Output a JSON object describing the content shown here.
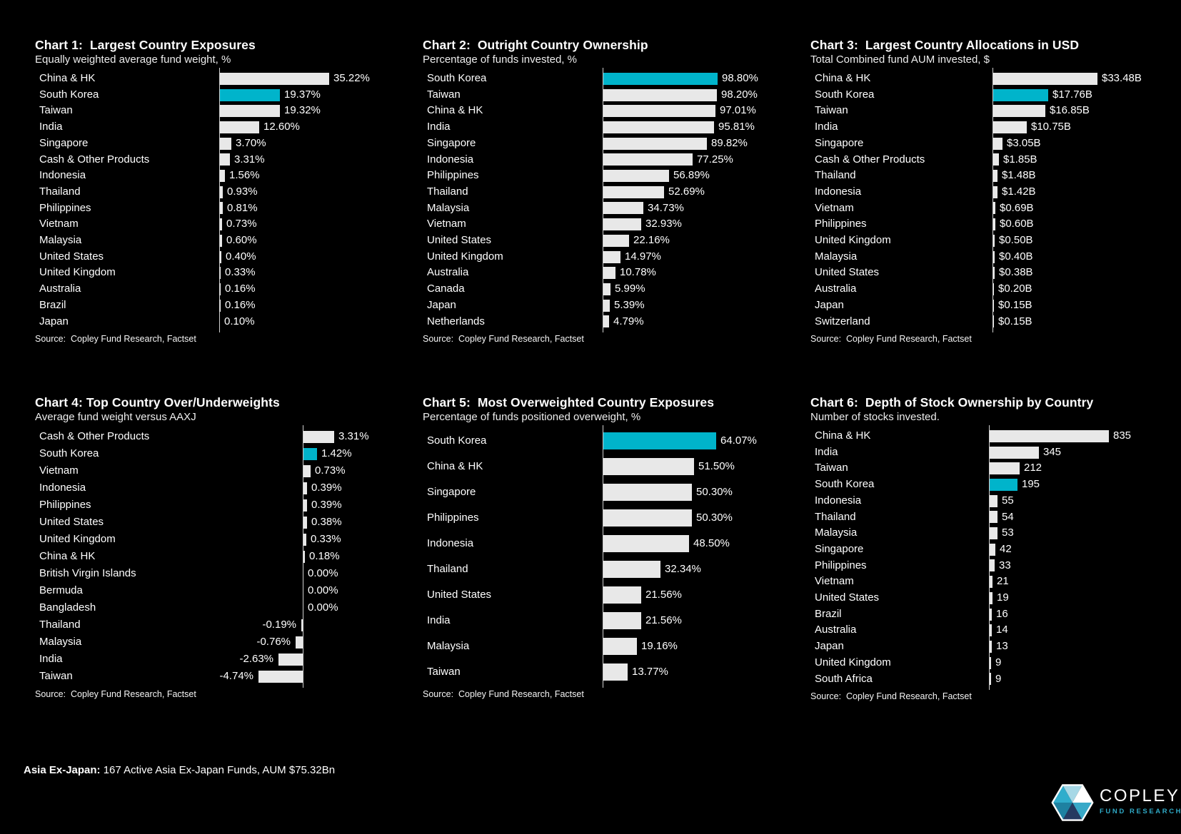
{
  "page": {
    "background": "#000000",
    "accent_color": "#00B4CB",
    "bar_color": "#E8E8E8",
    "footer": {
      "label_bold": "Asia Ex-Japan:",
      "label_rest": " 167 Active Asia Ex-Japan Funds, AUM $75.32Bn"
    },
    "logo": {
      "name": "COPLEY",
      "subtitle": "FUND RESEARCH"
    }
  },
  "chart_data": [
    {
      "id": "chart-1",
      "type": "bar",
      "orientation": "horizontal",
      "title": "Chart 1:  Largest Country Exposures",
      "subtitle": "Equally weighted average fund weight, %",
      "source": "Source:  Copley Fund Research, Factset",
      "xlim": [
        0,
        36
      ],
      "highlight_index": 1,
      "categories": [
        "China & HK",
        "South Korea",
        "Taiwan",
        "India",
        "Singapore",
        "Cash & Other Products",
        "Indonesia",
        "Thailand",
        "Philippines",
        "Vietnam",
        "Malaysia",
        "United States",
        "United Kingdom",
        "Australia",
        "Brazil",
        "Japan"
      ],
      "values": [
        35.22,
        19.37,
        19.32,
        12.6,
        3.7,
        3.31,
        1.56,
        0.93,
        0.81,
        0.73,
        0.6,
        0.4,
        0.33,
        0.16,
        0.16,
        0.1
      ],
      "value_labels": [
        "35.22%",
        "19.37%",
        "19.32%",
        "12.60%",
        "3.70%",
        "3.31%",
        "1.56%",
        "0.93%",
        "0.81%",
        "0.73%",
        "0.60%",
        "0.40%",
        "0.33%",
        "0.16%",
        "0.16%",
        "0.10%"
      ]
    },
    {
      "id": "chart-2",
      "type": "bar",
      "orientation": "horizontal",
      "title": "Chart 2:  Outright Country Ownership",
      "subtitle": "Percentage of funds invested, %",
      "source": "Source:  Copley Fund Research, Factset",
      "xlim": [
        0,
        100
      ],
      "highlight_index": 0,
      "categories": [
        "South Korea",
        "Taiwan",
        "China & HK",
        "India",
        "Singapore",
        "Indonesia",
        "Philippines",
        "Thailand",
        "Malaysia",
        "Vietnam",
        "United States",
        "United Kingdom",
        "Australia",
        "Canada",
        "Japan",
        "Netherlands"
      ],
      "values": [
        98.8,
        98.2,
        97.01,
        95.81,
        89.82,
        77.25,
        56.89,
        52.69,
        34.73,
        32.93,
        22.16,
        14.97,
        10.78,
        5.99,
        5.39,
        4.79
      ],
      "value_labels": [
        "98.80%",
        "98.20%",
        "97.01%",
        "95.81%",
        "89.82%",
        "77.25%",
        "56.89%",
        "52.69%",
        "34.73%",
        "32.93%",
        "22.16%",
        "14.97%",
        "10.78%",
        "5.99%",
        "5.39%",
        "4.79%"
      ]
    },
    {
      "id": "chart-3",
      "type": "bar",
      "orientation": "horizontal",
      "title": "Chart 3:  Largest Country Allocations in USD",
      "subtitle": "Total Combined fund AUM invested, $",
      "source": "Source:  Copley Fund Research, Factset",
      "xlim": [
        0,
        34
      ],
      "highlight_index": 1,
      "categories": [
        "China & HK",
        "South Korea",
        "Taiwan",
        "India",
        "Singapore",
        "Cash & Other Products",
        "Thailand",
        "Indonesia",
        "Vietnam",
        "Philippines",
        "United Kingdom",
        "Malaysia",
        "United States",
        "Australia",
        "Japan",
        "Switzerland"
      ],
      "values": [
        33.48,
        17.76,
        16.85,
        10.75,
        3.05,
        1.85,
        1.48,
        1.42,
        0.69,
        0.6,
        0.5,
        0.4,
        0.38,
        0.2,
        0.15,
        0.15
      ],
      "value_labels": [
        "$33.48B",
        "$17.76B",
        "$16.85B",
        "$10.75B",
        "$3.05B",
        "$1.85B",
        "$1.48B",
        "$1.42B",
        "$0.69B",
        "$0.60B",
        "$0.50B",
        "$0.40B",
        "$0.38B",
        "$0.20B",
        "$0.15B",
        "$0.15B"
      ]
    },
    {
      "id": "chart-4",
      "type": "bar",
      "orientation": "horizontal",
      "title": "Chart 4: Top Country Over/Underweights",
      "subtitle": "Average fund weight versus AAXJ",
      "source": "Source:  Copley Fund Research, Factset",
      "xlim": [
        -5,
        3.5
      ],
      "highlight_index": 1,
      "categories": [
        "Cash & Other Products",
        "South Korea",
        "Vietnam",
        "Indonesia",
        "Philippines",
        "United States",
        "United Kingdom",
        "China & HK",
        "British Virgin Islands",
        "Bermuda",
        "Bangladesh",
        "Thailand",
        "Malaysia",
        "India",
        "Taiwan"
      ],
      "values": [
        3.31,
        1.42,
        0.73,
        0.39,
        0.39,
        0.38,
        0.33,
        0.18,
        0.0,
        0.0,
        0.0,
        -0.19,
        -0.76,
        -2.63,
        -4.74
      ],
      "value_labels": [
        "3.31%",
        "1.42%",
        "0.73%",
        "0.39%",
        "0.39%",
        "0.38%",
        "0.33%",
        "0.18%",
        "0.00%",
        "0.00%",
        "0.00%",
        "-0.19%",
        "-0.76%",
        "-2.63%",
        "-4.74%"
      ]
    },
    {
      "id": "chart-5",
      "type": "bar",
      "orientation": "horizontal",
      "title": "Chart 5:  Most Overweighted Country Exposures",
      "subtitle": "Percentage of funds positioned overweight, %",
      "source": "Source:  Copley Fund Research, Factset",
      "xlim": [
        0,
        65
      ],
      "highlight_index": 0,
      "categories": [
        "South Korea",
        "China & HK",
        "Singapore",
        "Philippines",
        "Indonesia",
        "Thailand",
        "United States",
        "India",
        "Malaysia",
        "Taiwan"
      ],
      "values": [
        64.07,
        51.5,
        50.3,
        50.3,
        48.5,
        32.34,
        21.56,
        21.56,
        19.16,
        13.77
      ],
      "value_labels": [
        "64.07%",
        "51.50%",
        "50.30%",
        "50.30%",
        "48.50%",
        "32.34%",
        "21.56%",
        "21.56%",
        "19.16%",
        "13.77%"
      ]
    },
    {
      "id": "chart-6",
      "type": "bar",
      "orientation": "horizontal",
      "title": "Chart 6:  Depth of Stock Ownership by Country",
      "subtitle": "Number of stocks invested.",
      "source": "Source:  Copley Fund Research, Factset",
      "xlim": [
        0,
        850
      ],
      "highlight_index": 3,
      "categories": [
        "China & HK",
        "India",
        "Taiwan",
        "South Korea",
        "Indonesia",
        "Thailand",
        "Malaysia",
        "Singapore",
        "Philippines",
        "Vietnam",
        "United States",
        "Brazil",
        "Australia",
        "Japan",
        "United Kingdom",
        "South Africa"
      ],
      "values": [
        835,
        345,
        212,
        195,
        55,
        54,
        53,
        42,
        33,
        21,
        19,
        16,
        14,
        13,
        9,
        9
      ],
      "value_labels": [
        "835",
        "345",
        "212",
        "195",
        "55",
        "54",
        "53",
        "42",
        "33",
        "21",
        "19",
        "16",
        "14",
        "13",
        "9",
        "9"
      ]
    }
  ]
}
